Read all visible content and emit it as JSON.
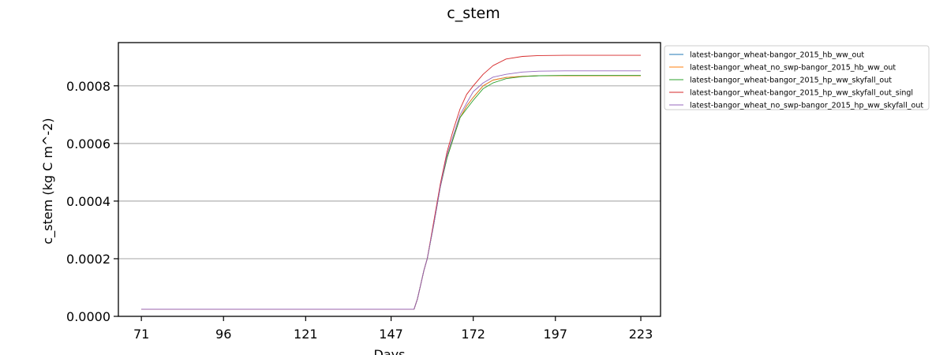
{
  "chart_data": {
    "type": "line",
    "title": "c_stem",
    "xlabel": "Days",
    "ylabel": "c_stem (kg C m^-2)",
    "xlim": [
      64,
      229
    ],
    "ylim": [
      0,
      0.00095
    ],
    "xticks": [
      71,
      96,
      121,
      147,
      172,
      197,
      223
    ],
    "xtick_labels": [
      "71",
      "96",
      "121",
      "147",
      "172",
      "197",
      "223"
    ],
    "yticks": [
      0,
      0.0002,
      0.0004,
      0.0006,
      0.0008
    ],
    "ytick_labels": [
      "0.0000",
      "0.0002",
      "0.0004",
      "0.0006",
      "0.0008"
    ],
    "grid": "horizontal",
    "legend_position": "outside-top-right",
    "x": [
      71,
      100,
      130,
      154,
      155,
      156,
      157,
      158,
      160,
      162,
      164,
      166,
      168,
      170,
      172,
      175,
      178,
      182,
      187,
      192,
      200,
      210,
      223
    ],
    "series": [
      {
        "name": "latest-bangor_wheat-bangor_2015_hb_ww_out",
        "color": "#1f77b4",
        "values": [
          2.5e-05,
          2.5e-05,
          2.5e-05,
          2.5e-05,
          6e-05,
          0.00011,
          0.00016,
          0.0002,
          0.00032,
          0.00045,
          0.00055,
          0.00062,
          0.00069,
          0.00073,
          0.00076,
          0.0008,
          0.00082,
          0.000829,
          0.000833,
          0.000835,
          0.000835,
          0.000835,
          0.000835
        ]
      },
      {
        "name": "latest-bangor_wheat_no_swp-bangor_2015_hb_ww_out",
        "color": "#ff7f0e",
        "values": [
          2.5e-05,
          2.5e-05,
          2.5e-05,
          2.5e-05,
          6e-05,
          0.00011,
          0.00016,
          0.0002,
          0.00032,
          0.00045,
          0.00055,
          0.00062,
          0.00069,
          0.00073,
          0.00076,
          0.0008,
          0.00082,
          0.000829,
          0.000833,
          0.000835,
          0.000835,
          0.000835,
          0.000835
        ]
      },
      {
        "name": "latest-bangor_wheat-bangor_2015_hp_ww_skyfall_out",
        "color": "#2ca02c",
        "values": [
          2.5e-05,
          2.5e-05,
          2.5e-05,
          2.5e-05,
          6e-05,
          0.00011,
          0.00016,
          0.0002,
          0.00032,
          0.00045,
          0.00055,
          0.00062,
          0.00069,
          0.00072,
          0.00075,
          0.00079,
          0.00081,
          0.000825,
          0.000832,
          0.000835,
          0.000836,
          0.000836,
          0.000836
        ]
      },
      {
        "name": "latest-bangor_wheat-bangor_2015_hp_ww_skyfall_out_singl",
        "color": "#d62728",
        "values": [
          2.5e-05,
          2.5e-05,
          2.5e-05,
          2.5e-05,
          6e-05,
          0.00011,
          0.00016,
          0.0002,
          0.00033,
          0.00046,
          0.00057,
          0.00065,
          0.00072,
          0.00077,
          0.0008,
          0.00084,
          0.00087,
          0.000893,
          0.000902,
          0.000905,
          0.000906,
          0.000906,
          0.000906
        ]
      },
      {
        "name": "latest-bangor_wheat_no_swp-bangor_2015_hp_ww_skyfall_out",
        "color": "#9467bd",
        "values": [
          2.5e-05,
          2.5e-05,
          2.5e-05,
          2.5e-05,
          6e-05,
          0.00011,
          0.00016,
          0.0002,
          0.00032,
          0.00045,
          0.00056,
          0.00063,
          0.0007,
          0.00074,
          0.00078,
          0.00081,
          0.00083,
          0.00084,
          0.000848,
          0.000851,
          0.000852,
          0.000852,
          0.000852
        ]
      }
    ]
  }
}
